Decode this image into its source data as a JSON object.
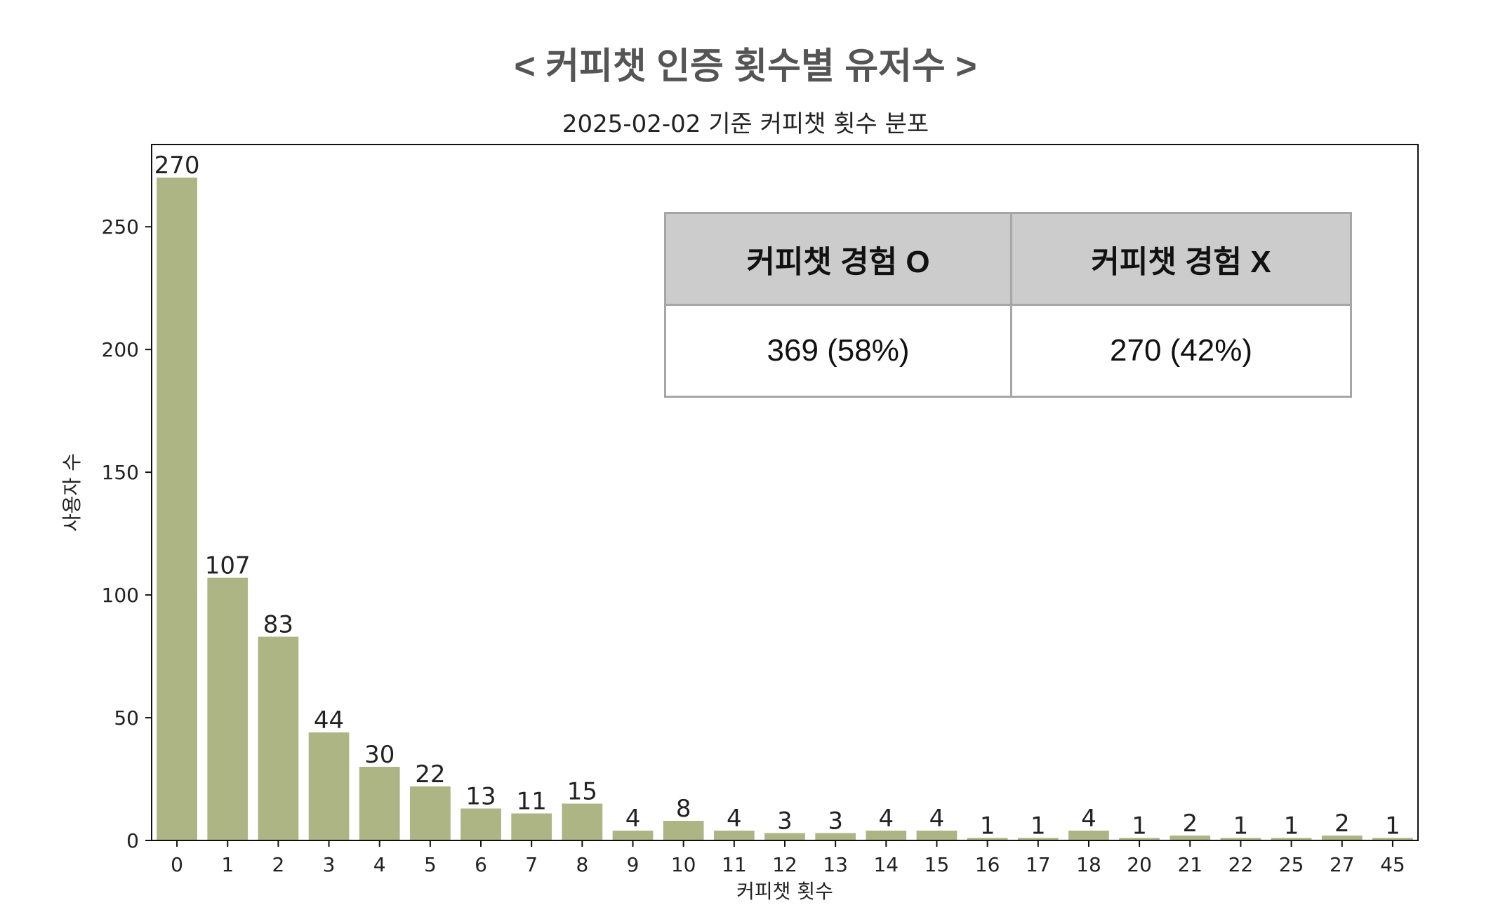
{
  "page_title": "< 커피챗 인증 횟수별 유저수 >",
  "chart_data": {
    "type": "bar",
    "title": "2025-02-02 기준 커피챗 횟수 분포",
    "xlabel": "커피챗 횟수",
    "ylabel": "사용자 수",
    "categories": [
      "0",
      "1",
      "2",
      "3",
      "4",
      "5",
      "6",
      "7",
      "8",
      "9",
      "10",
      "11",
      "12",
      "13",
      "14",
      "15",
      "16",
      "17",
      "18",
      "20",
      "21",
      "22",
      "25",
      "27",
      "45"
    ],
    "values": [
      270,
      107,
      83,
      44,
      30,
      22,
      13,
      11,
      15,
      4,
      8,
      4,
      3,
      3,
      4,
      4,
      1,
      1,
      4,
      1,
      2,
      1,
      1,
      2,
      1
    ],
    "ylim": [
      0,
      283.5
    ],
    "yticks": [
      0,
      50,
      100,
      150,
      200,
      250
    ],
    "bar_color": "#adb585",
    "grid": false,
    "data_labels": true
  },
  "summary_table": {
    "headers": [
      "커피챗 경험 O",
      "커피챗 경험 X"
    ],
    "values": [
      "369 (58%)",
      "270 (42%)"
    ]
  }
}
